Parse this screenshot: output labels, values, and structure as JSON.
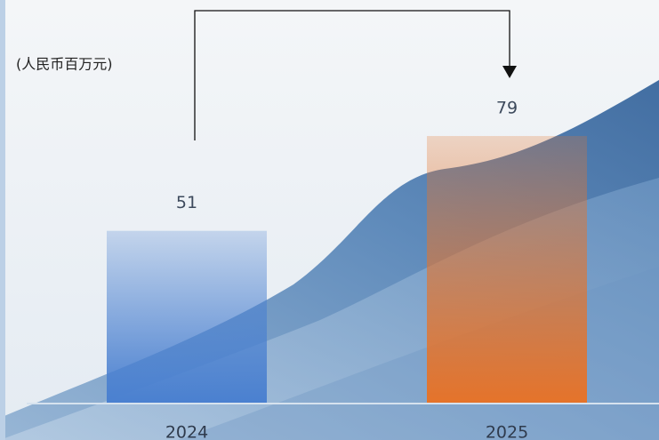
{
  "chart_data": {
    "type": "bar",
    "unit_label": "(人民币百万元)",
    "categories": [
      "2024",
      "2025"
    ],
    "values": [
      51,
      79
    ],
    "colors": [
      "#4a80d0",
      "#e5732a"
    ],
    "ylim": [
      0,
      100
    ]
  }
}
